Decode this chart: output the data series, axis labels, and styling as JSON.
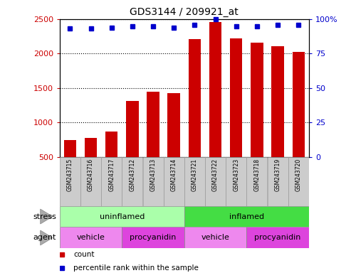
{
  "title": "GDS3144 / 209921_at",
  "samples": [
    "GSM243715",
    "GSM243716",
    "GSM243717",
    "GSM243712",
    "GSM243713",
    "GSM243714",
    "GSM243721",
    "GSM243722",
    "GSM243723",
    "GSM243718",
    "GSM243719",
    "GSM243720"
  ],
  "counts": [
    750,
    775,
    870,
    1310,
    1450,
    1430,
    2210,
    2460,
    2220,
    2155,
    2110,
    2020
  ],
  "percentile_ranks": [
    93,
    93,
    94,
    95,
    95,
    94,
    96,
    100,
    95,
    95,
    96,
    96
  ],
  "ylim_left": [
    500,
    2500
  ],
  "ylim_right": [
    0,
    100
  ],
  "yticks_left": [
    500,
    1000,
    1500,
    2000,
    2500
  ],
  "yticks_right": [
    0,
    25,
    50,
    75,
    100
  ],
  "bar_color": "#cc0000",
  "dot_color": "#0000cc",
  "stress_groups": [
    {
      "label": "uninflamed",
      "start": 0,
      "end": 6,
      "color": "#aaffaa"
    },
    {
      "label": "inflamed",
      "start": 6,
      "end": 12,
      "color": "#44dd44"
    }
  ],
  "agent_groups": [
    {
      "label": "vehicle",
      "start": 0,
      "end": 3,
      "color": "#ee88ee"
    },
    {
      "label": "procyanidin",
      "start": 3,
      "end": 6,
      "color": "#dd44dd"
    },
    {
      "label": "vehicle",
      "start": 6,
      "end": 9,
      "color": "#ee88ee"
    },
    {
      "label": "procyanidin",
      "start": 9,
      "end": 12,
      "color": "#dd44dd"
    }
  ],
  "legend_items": [
    {
      "label": "count",
      "color": "#cc0000"
    },
    {
      "label": "percentile rank within the sample",
      "color": "#0000cc"
    }
  ],
  "stress_label": "stress",
  "agent_label": "agent",
  "grid_color": "#000000",
  "bar_bottom": 500,
  "label_box_color": "#cccccc",
  "label_box_edge": "#999999"
}
